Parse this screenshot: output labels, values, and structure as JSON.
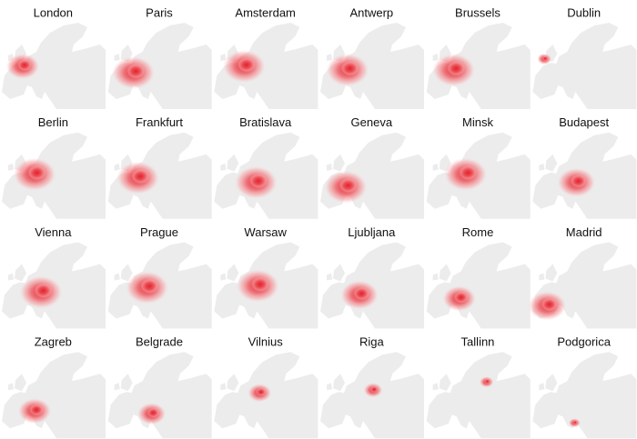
{
  "panels": [
    {
      "title": "London"
    },
    {
      "title": "Paris"
    },
    {
      "title": "Amsterdam"
    },
    {
      "title": "Antwerp"
    },
    {
      "title": "Brussels"
    },
    {
      "title": "Dublin"
    },
    {
      "title": "Berlin"
    },
    {
      "title": "Frankfurt"
    },
    {
      "title": "Bratislava"
    },
    {
      "title": "Geneva"
    },
    {
      "title": "Minsk"
    },
    {
      "title": "Budapest"
    },
    {
      "title": "Vienna"
    },
    {
      "title": "Prague"
    },
    {
      "title": "Warsaw"
    },
    {
      "title": "Ljubljana"
    },
    {
      "title": "Rome"
    },
    {
      "title": "Madrid"
    },
    {
      "title": "Zagreb"
    },
    {
      "title": "Belgrade"
    },
    {
      "title": "Vilnius"
    },
    {
      "title": "Riga"
    },
    {
      "title": "Tallinn"
    },
    {
      "title": "Podgorica"
    }
  ]
}
